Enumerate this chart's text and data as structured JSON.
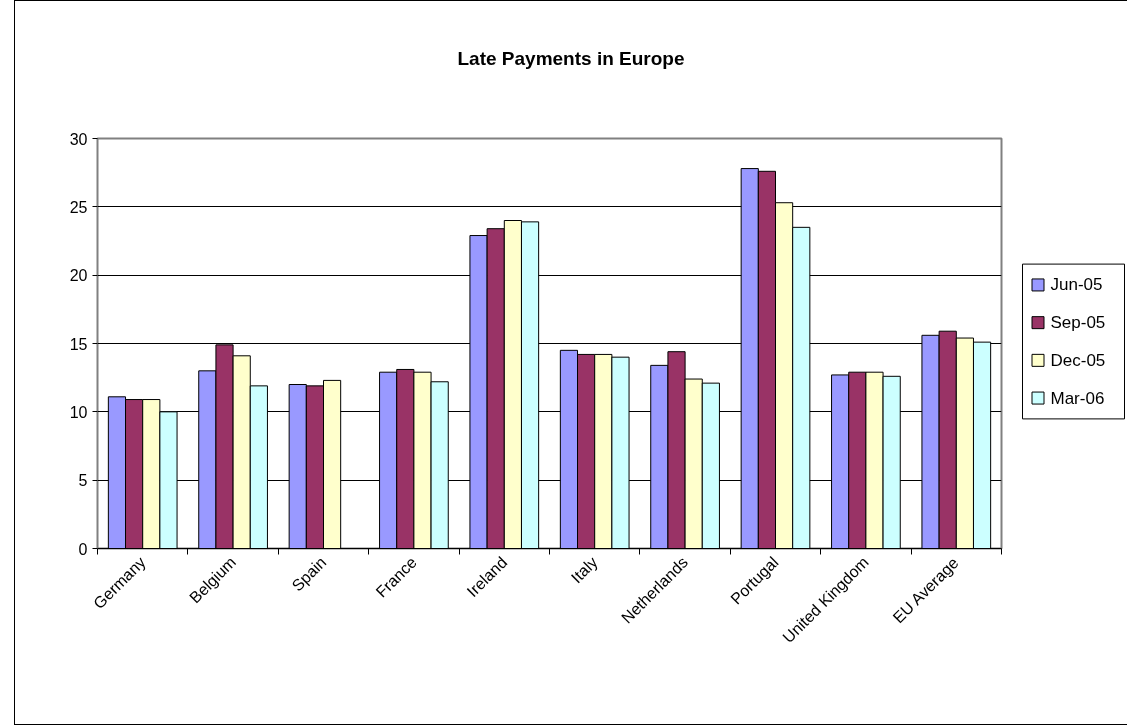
{
  "chart_data": {
    "type": "bar",
    "title": "Late Payments in Europe",
    "categories": [
      "Germany",
      "Belgium",
      "Spain",
      "France",
      "Ireland",
      "Italy",
      "Netherlands",
      "Portugal",
      "United Kingdom",
      "EU Average"
    ],
    "series": [
      {
        "name": "Jun-05",
        "color": "#9999ff",
        "values": [
          11.1,
          13.0,
          12.0,
          12.9,
          22.9,
          14.5,
          13.4,
          27.8,
          12.7,
          15.6
        ]
      },
      {
        "name": "Sep-05",
        "color": "#993366",
        "values": [
          10.9,
          14.9,
          11.9,
          13.1,
          23.4,
          14.2,
          14.4,
          27.6,
          12.9,
          15.9
        ]
      },
      {
        "name": "Dec-05",
        "color": "#ffffcc",
        "values": [
          10.9,
          14.1,
          12.3,
          12.9,
          24.0,
          14.2,
          12.4,
          25.3,
          12.9,
          15.4
        ]
      },
      {
        "name": "Mar-06",
        "color": "#ccffff",
        "values": [
          10.0,
          11.9,
          null,
          12.2,
          23.9,
          14.0,
          12.1,
          23.5,
          12.6,
          15.1
        ]
      }
    ],
    "ylim": [
      0,
      30
    ],
    "yticks": [
      0,
      5,
      10,
      15,
      20,
      25,
      30
    ],
    "grid": "y",
    "legend": "right"
  }
}
